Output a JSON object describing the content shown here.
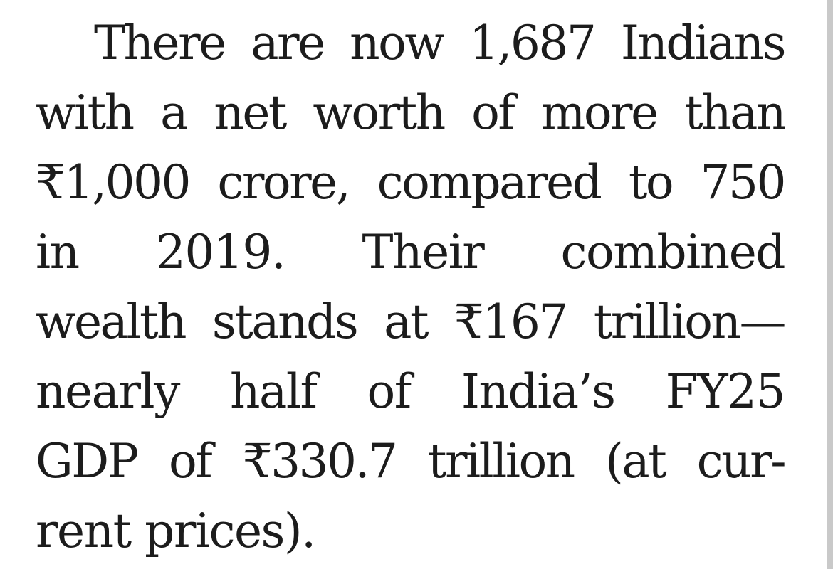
{
  "article": {
    "lines": [
      "There are now 1,687 Indians",
      "with a net worth of more than",
      "₹1,000 crore, compared to 750",
      "in 2019. Their combined",
      "wealth stands at ₹167 trillion—",
      "nearly half of India’s FY25",
      "GDP of ₹330.7 trillion (at cur-",
      "rent prices)."
    ]
  }
}
